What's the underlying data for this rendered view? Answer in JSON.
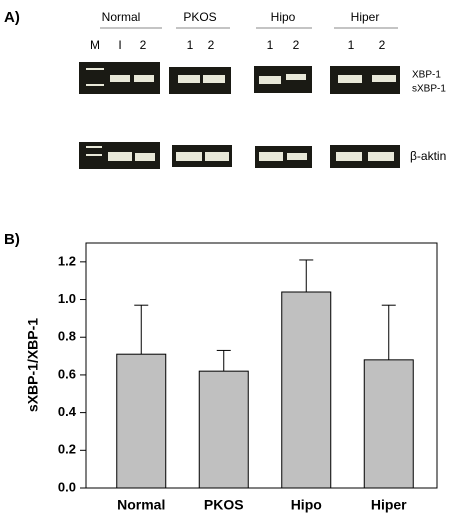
{
  "panel_a": {
    "label": "A)",
    "groups": [
      "Normal",
      "PKOS",
      "Hipo",
      "Hiper"
    ],
    "lanes": [
      "M",
      "I",
      "2",
      "1",
      "2",
      "1",
      "2",
      "1",
      "2"
    ],
    "bands": [
      "XBP-1",
      "sXBP-1",
      "β-aktin"
    ]
  },
  "chart_data": {
    "type": "bar",
    "panel_label": "B)",
    "y_label": "sXBP-1/XBP-1",
    "categories": [
      "Normal",
      "PKOS",
      "Hipo",
      "Hiper"
    ],
    "values": [
      0.71,
      0.62,
      1.04,
      0.68
    ],
    "errors": [
      0.26,
      0.11,
      0.17,
      0.29
    ],
    "color": "#c0c0c0",
    "ylim": [
      0,
      1.3
    ],
    "yticks": [
      {
        "value": 0,
        "label": "0.0"
      },
      0.2,
      0.4,
      0.6,
      0.8,
      {
        "value": 1,
        "label": "1.0"
      },
      1.2
    ]
  }
}
